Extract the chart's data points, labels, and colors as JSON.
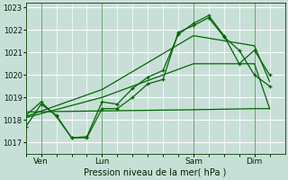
{
  "xlabel": "Pression niveau de la mer( hPa )",
  "bg_color": "#c8dfd8",
  "grid_color": "#ffffff",
  "line_color": "#006600",
  "ylim": [
    1016.5,
    1023.2
  ],
  "yticks": [
    1017,
    1018,
    1019,
    1020,
    1021,
    1022,
    1023
  ],
  "day_labels": [
    "Ven",
    "Lun",
    "Sam",
    "Dim"
  ],
  "day_positions": [
    1,
    5,
    11,
    15
  ],
  "vline_positions": [
    1,
    5,
    11,
    15
  ],
  "xlim": [
    0,
    17
  ],
  "num_minor_x": 17,
  "series1_x": [
    0,
    1,
    2,
    3,
    4,
    5,
    6,
    7,
    8,
    9,
    10,
    11,
    12,
    13,
    14,
    15,
    16
  ],
  "series1_y": [
    1017.7,
    1018.7,
    1018.2,
    1017.2,
    1017.2,
    1018.5,
    1018.5,
    1019.0,
    1019.6,
    1019.8,
    1021.9,
    1022.2,
    1022.55,
    1021.7,
    1021.1,
    1020.0,
    1019.5
  ],
  "series2_x": [
    0,
    1,
    2,
    3,
    4,
    5,
    6,
    7,
    8,
    9,
    10,
    11,
    12,
    13,
    14,
    15,
    16
  ],
  "series2_y": [
    1018.2,
    1018.8,
    1018.15,
    1017.2,
    1017.25,
    1018.8,
    1018.7,
    1019.4,
    1019.9,
    1020.2,
    1021.8,
    1022.3,
    1022.65,
    1021.75,
    1020.5,
    1021.1,
    1020.0
  ],
  "trend1_x": [
    0,
    5,
    11,
    15,
    16
  ],
  "trend1_y": [
    1018.15,
    1019.35,
    1021.75,
    1021.3,
    1019.7
  ],
  "trend2_x": [
    0,
    5,
    11,
    15,
    16
  ],
  "trend2_y": [
    1018.1,
    1019.0,
    1020.5,
    1020.5,
    1018.5
  ],
  "flat_x": [
    0,
    5,
    11,
    15,
    16
  ],
  "flat_y": [
    1018.35,
    1018.4,
    1018.45,
    1018.5,
    1018.5
  ]
}
